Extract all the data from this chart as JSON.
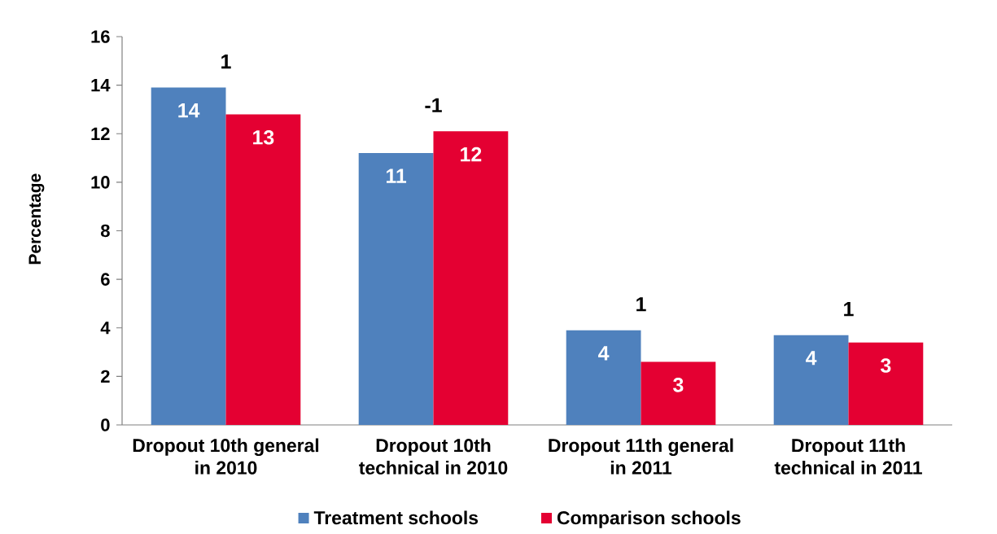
{
  "chart_data": {
    "type": "bar",
    "ylabel": "Percentage",
    "categories": [
      "Dropout 10th general in 2010",
      "Dropout 10th technical in 2010",
      "Dropout 11th general in 2011",
      "Dropout 11th technical in 2011"
    ],
    "series": [
      {
        "name": "Treatment schools",
        "color": "#4F81BD",
        "values": [
          13.9,
          11.2,
          3.9,
          3.7
        ],
        "value_labels": [
          "14",
          "11",
          "4",
          "4"
        ]
      },
      {
        "name": "Comparison schools",
        "color": "#E40032",
        "values": [
          12.8,
          12.1,
          2.6,
          3.4
        ],
        "value_labels": [
          "13",
          "12",
          "3",
          "3"
        ]
      }
    ],
    "ylim": [
      0,
      16
    ],
    "yticks": [
      0,
      2,
      4,
      6,
      8,
      10,
      12,
      14,
      16
    ],
    "grid": false,
    "legend": "bottom",
    "annotations": [
      "1",
      "-1",
      "1",
      "1"
    ]
  }
}
